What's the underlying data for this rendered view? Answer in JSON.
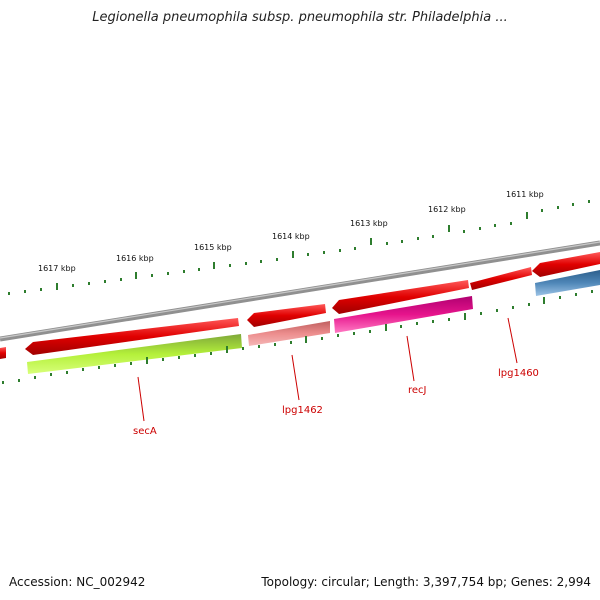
{
  "title": "Legionella pneumophila subsp. pneumophila str. Philadelphia ...",
  "footer": {
    "accession": "Accession: NC_002942",
    "summary": "Topology: circular; Length: 3,397,754 bp; Genes: 2,994"
  },
  "tick_labels": [
    "1617 kbp",
    "1616 kbp",
    "1615 kbp",
    "1614 kbp",
    "1613 kbp",
    "1612 kbp",
    "1611 kbp"
  ],
  "gene_labels": [
    "secA",
    "lpg1462",
    "recJ",
    "lpg1460"
  ],
  "colors": {
    "backbone": "#808080",
    "forward_gene": "#e00000",
    "reverse_green": "#b4f03a",
    "reverse_salmon": "#ec8d8d",
    "reverse_magenta": "#e6148c",
    "reverse_blue": "#4f87b8",
    "tick": "#2e7d2e",
    "label": "#cc0000"
  }
}
